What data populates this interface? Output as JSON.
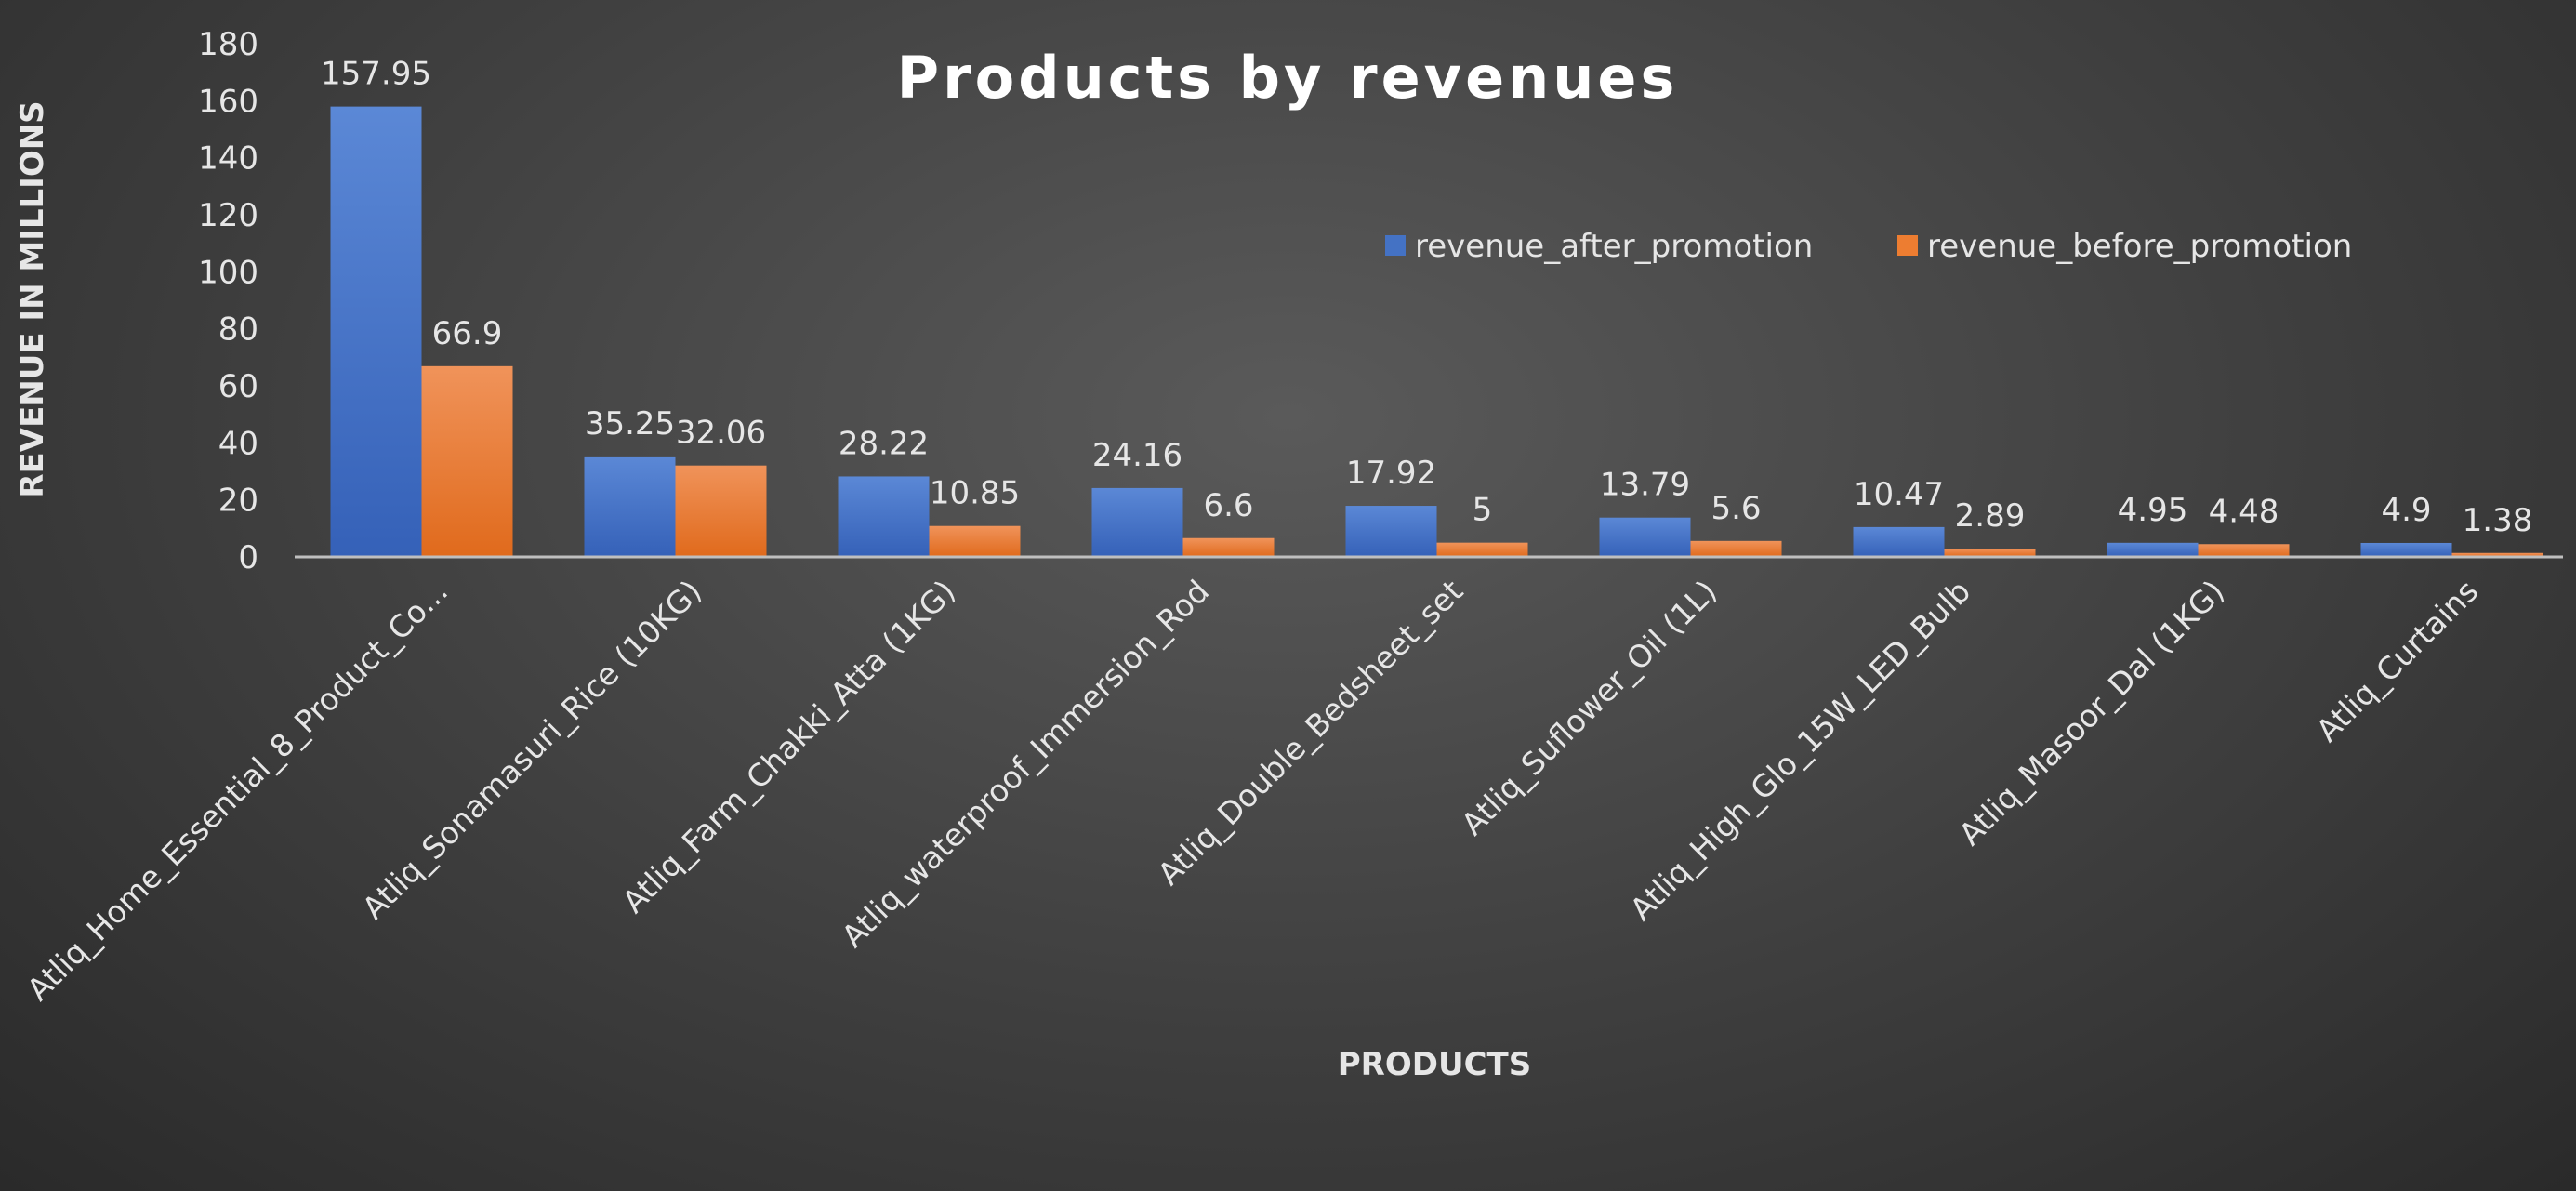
{
  "chart_data": {
    "type": "bar",
    "title": "Products by revenues",
    "xlabel": "PRODUCTS",
    "ylabel": "REVENUE IN MILLIONS",
    "ylim": [
      0,
      180
    ],
    "yticks": [
      0,
      20,
      40,
      60,
      80,
      100,
      120,
      140,
      160,
      180
    ],
    "grid": false,
    "legend_position": "top-right",
    "categories": [
      "Atliq_Home_Essential_8_Product_Co...",
      "Atliq_Sonamasuri_Rice (10KG)",
      "Atliq_Farm_Chakki_Atta (1KG)",
      "Atliq_waterproof_Immersion_Rod",
      "Atliq_Double_Bedsheet_set",
      "Atliq_Suflower_Oil (1L)",
      "Atliq_High_Glo_15W_LED_Bulb",
      "Atliq_Masoor_Dal (1KG)",
      "Atliq_Curtains"
    ],
    "series": [
      {
        "name": "revenue_after_promotion",
        "color": "#4472C4",
        "values": [
          157.95,
          35.25,
          28.22,
          24.16,
          17.92,
          13.79,
          10.47,
          4.95,
          4.9
        ]
      },
      {
        "name": "revenue_before_promotion",
        "color": "#ED7D31",
        "values": [
          66.9,
          32.06,
          10.85,
          6.6,
          5,
          5.6,
          2.89,
          4.48,
          1.38
        ]
      }
    ]
  }
}
